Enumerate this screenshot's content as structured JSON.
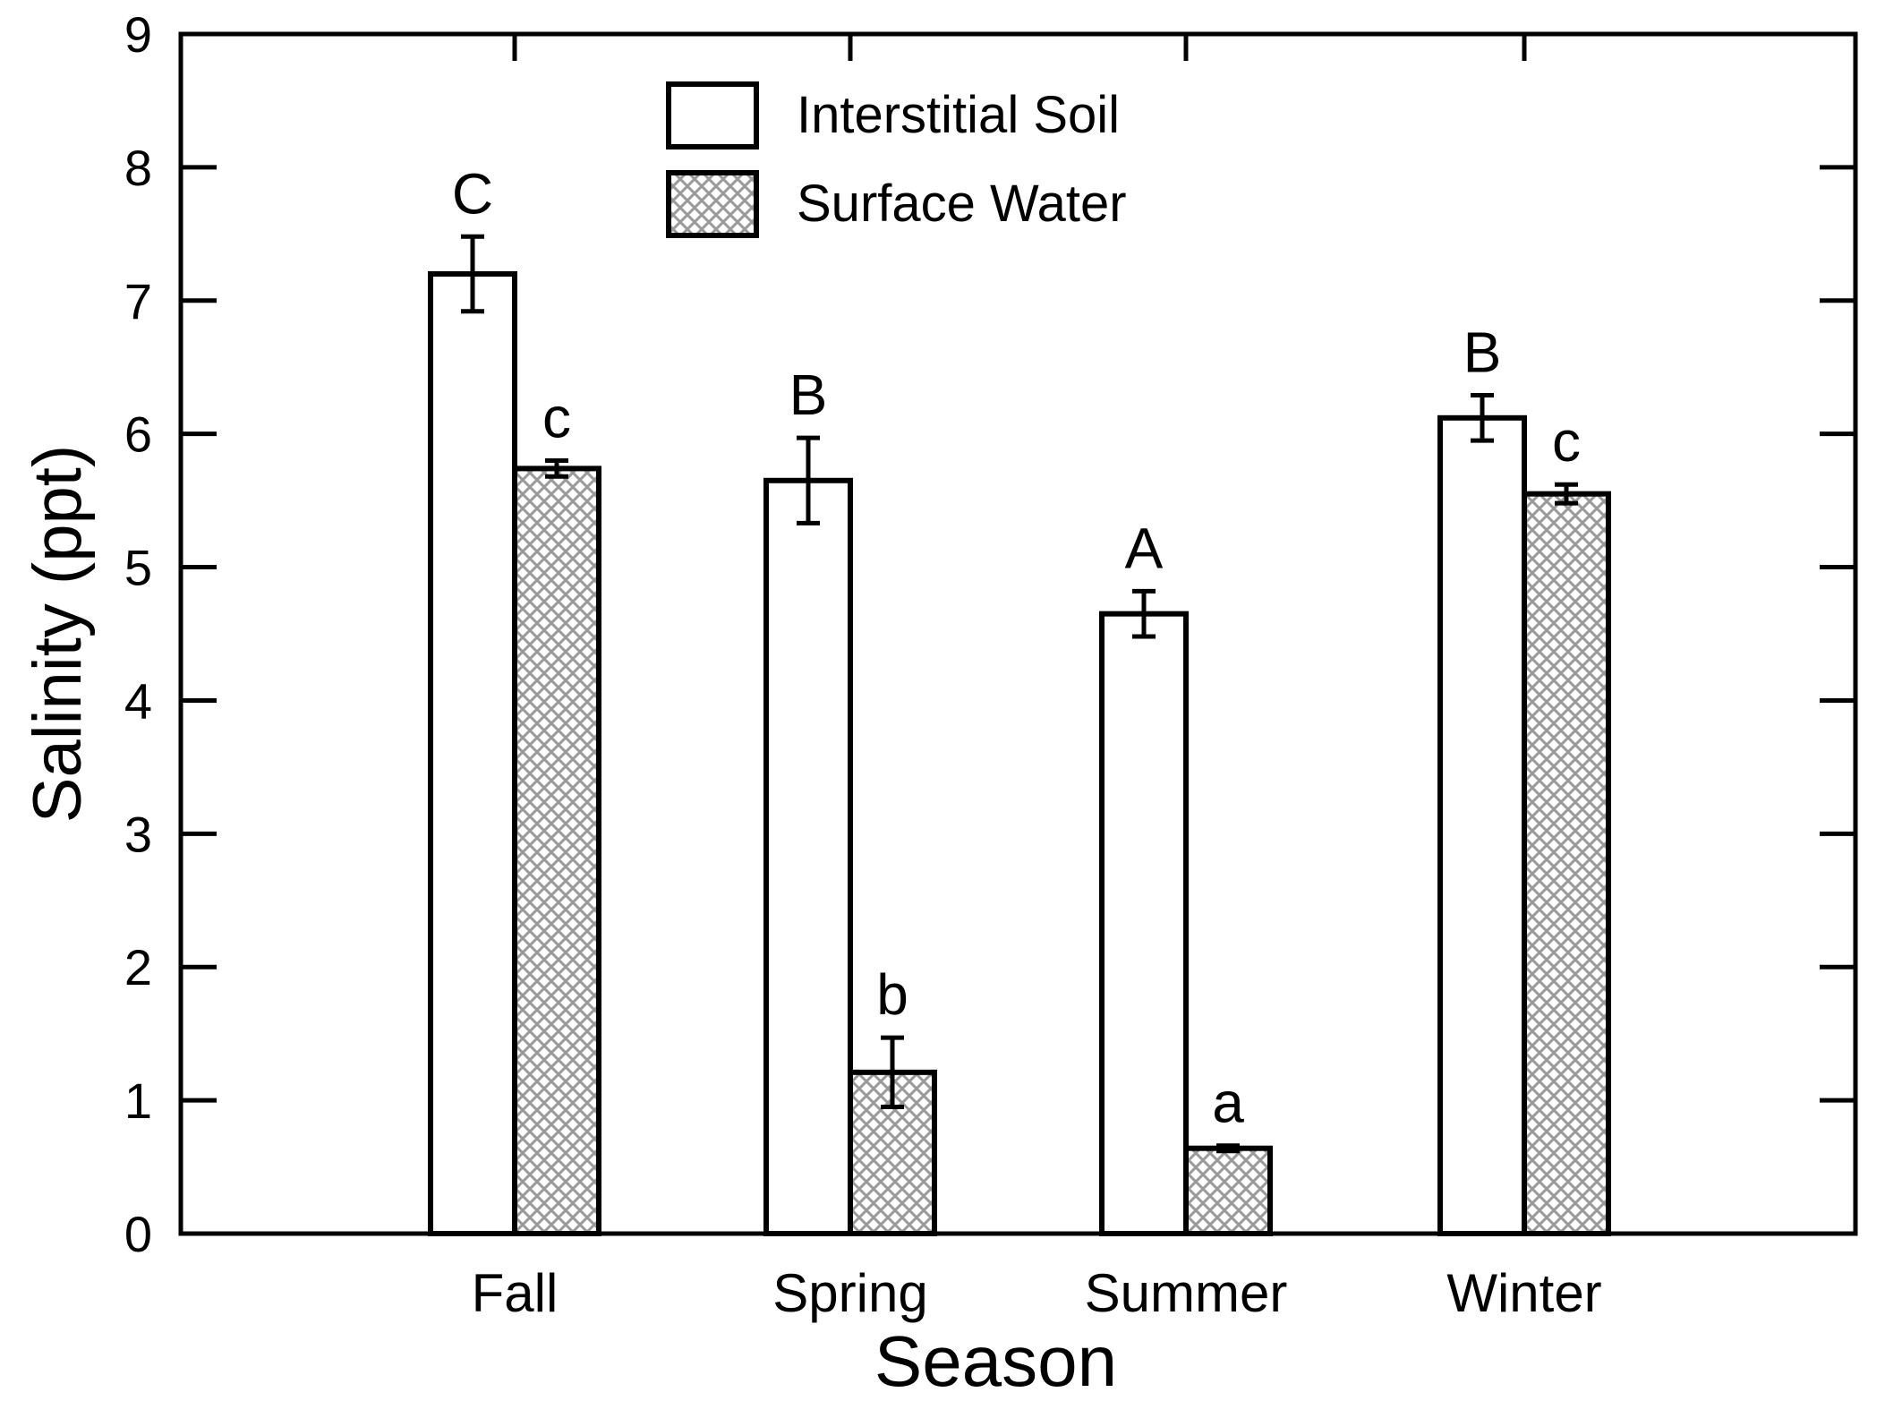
{
  "chart_data": {
    "type": "bar",
    "xlabel": "Season",
    "ylabel": "Salinity (ppt)",
    "ylim": [
      0,
      9
    ],
    "yticks": [
      "0",
      "1",
      "2",
      "3",
      "4",
      "5",
      "6",
      "7",
      "8",
      "9"
    ],
    "categories": [
      "Fall",
      "Spring",
      "Summer",
      "Winter"
    ],
    "legend_position": "top-center",
    "grid": false,
    "colors": {
      "axis": "#000000",
      "bar_fill": "#ffffff",
      "hatch": "#9a9a9a"
    },
    "series": [
      {
        "name": "Interstitial Soil",
        "fill": "plain",
        "values": [
          7.2,
          5.65,
          4.65,
          6.12
        ],
        "errors": [
          0.28,
          0.32,
          0.17,
          0.17
        ],
        "letters": [
          "C",
          "B",
          "A",
          "B"
        ]
      },
      {
        "name": "Surface Water",
        "fill": "crosshatch",
        "values": [
          5.74,
          1.21,
          0.64,
          5.55
        ],
        "errors": [
          0.06,
          0.26,
          0.02,
          0.07
        ],
        "letters": [
          "c",
          "b",
          "a",
          "c"
        ]
      }
    ]
  }
}
